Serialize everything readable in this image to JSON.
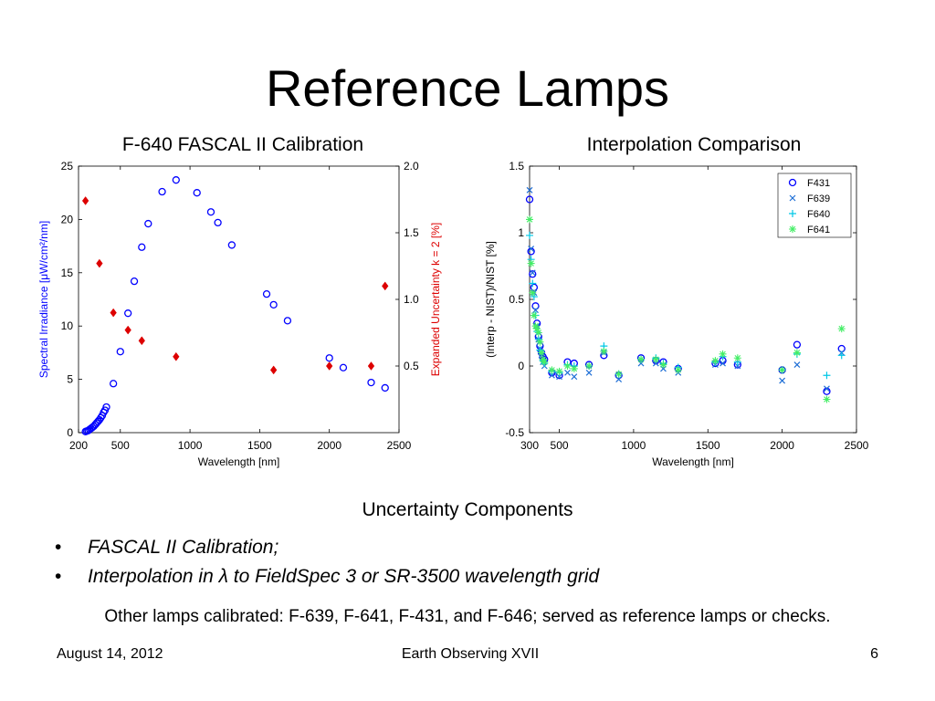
{
  "slide": {
    "title": "Reference Lamps",
    "subheading": "Uncertainty Components",
    "bullets": [
      "FASCAL II Calibration;",
      "Interpolation in λ to FieldSpec 3 or SR-3500 wavelength grid"
    ],
    "note": "Other lamps calibrated: F-639, F-641, F-431, and F-646; served as reference lamps or checks.",
    "footer": {
      "date": "August 14, 2012",
      "conference": "Earth Observing XVII",
      "page": "6"
    }
  },
  "chart_data": [
    {
      "type": "scatter",
      "title": "F-640 FASCAL II Calibration",
      "xlabel": "Wavelength [nm]",
      "xlim": [
        200,
        2500
      ],
      "xticks": [
        200,
        500,
        1000,
        1500,
        2000,
        2500
      ],
      "ylabel": "Spectral Irradiance [μW/cm²/nm]",
      "ylim": [
        0,
        25
      ],
      "yticks": [
        0,
        5,
        10,
        15,
        20,
        25
      ],
      "y2label": "Expanded Uncertainty k = 2 [%]",
      "y2lim": [
        0,
        2.0
      ],
      "y2ticks": [
        "0.5",
        "1.0",
        "1.5",
        "2.0"
      ],
      "colors": {
        "irradiance": "#0000ff",
        "uncertainty": "#dd0000"
      },
      "series": [
        {
          "axis": "left",
          "marker": "circle",
          "x": [
            250,
            260,
            270,
            280,
            290,
            300,
            310,
            320,
            330,
            340,
            350,
            360,
            370,
            380,
            390,
            400,
            450,
            500,
            555,
            600,
            654,
            700,
            800,
            900,
            1050,
            1150,
            1200,
            1300,
            1550,
            1600,
            1700,
            2000,
            2100,
            2300,
            2400
          ],
          "y": [
            0.1,
            0.15,
            0.2,
            0.3,
            0.4,
            0.5,
            0.6,
            0.75,
            0.9,
            1.05,
            1.2,
            1.4,
            1.6,
            1.9,
            2.1,
            2.4,
            4.6,
            7.6,
            11.2,
            14.2,
            17.4,
            19.6,
            22.6,
            23.7,
            22.5,
            20.7,
            19.7,
            17.6,
            13.0,
            12.0,
            10.5,
            7.0,
            6.1,
            4.7,
            4.2
          ]
        },
        {
          "axis": "right",
          "marker": "diamond",
          "x": [
            250,
            350,
            450,
            555,
            654,
            900,
            1600,
            2000,
            2300,
            2400
          ],
          "y": [
            1.74,
            1.27,
            0.9,
            0.77,
            0.69,
            0.57,
            0.47,
            0.5,
            0.5,
            1.1
          ]
        }
      ]
    },
    {
      "type": "scatter",
      "title": "Interpolation Comparison",
      "xlabel": "Wavelength [nm]",
      "xlim": [
        300,
        2500
      ],
      "xticks": [
        300,
        500,
        1000,
        1500,
        2000,
        2500
      ],
      "ylabel": "(Interp - NIST)/NIST [%]",
      "ylim": [
        -0.5,
        1.5
      ],
      "yticks": [
        "-0.5",
        "0",
        "0.5",
        "1",
        "1.5"
      ],
      "legend": "top-right",
      "series": [
        {
          "name": "F431",
          "marker": "circle",
          "color": "#0000ff",
          "x": [
            300,
            310,
            320,
            330,
            340,
            350,
            360,
            370,
            380,
            390,
            400,
            450,
            500,
            555,
            600,
            700,
            800,
            900,
            1050,
            1150,
            1200,
            1300,
            1550,
            1600,
            1700,
            2000,
            2100,
            2300,
            2400
          ],
          "y": [
            1.25,
            0.86,
            0.69,
            0.59,
            0.45,
            0.32,
            0.22,
            0.15,
            0.1,
            0.07,
            0.05,
            -0.05,
            -0.07,
            0.03,
            0.02,
            0.01,
            0.08,
            -0.07,
            0.06,
            0.04,
            0.03,
            -0.02,
            0.02,
            0.04,
            0.01,
            -0.03,
            0.16,
            -0.19,
            0.13
          ]
        },
        {
          "name": "F639",
          "marker": "x",
          "color": "#1f6fd6",
          "x": [
            300,
            310,
            320,
            330,
            340,
            350,
            360,
            370,
            380,
            390,
            400,
            450,
            500,
            555,
            600,
            700,
            800,
            900,
            1050,
            1150,
            1200,
            1300,
            1550,
            1600,
            1700,
            2000,
            2100,
            2300,
            2400
          ],
          "y": [
            1.32,
            0.88,
            0.7,
            0.55,
            0.42,
            0.3,
            0.2,
            0.13,
            0.08,
            0.03,
            0.0,
            -0.07,
            -0.08,
            -0.05,
            -0.08,
            -0.05,
            0.1,
            -0.1,
            0.02,
            0.02,
            -0.02,
            -0.05,
            0.01,
            0.02,
            0.0,
            -0.11,
            0.01,
            -0.17,
            0.1
          ]
        },
        {
          "name": "F640",
          "marker": "plus",
          "color": "#00c8e6",
          "x": [
            300,
            310,
            320,
            330,
            340,
            350,
            360,
            370,
            380,
            390,
            400,
            450,
            500,
            555,
            600,
            700,
            800,
            900,
            1050,
            1150,
            1200,
            1300,
            1550,
            1600,
            1700,
            2000,
            2100,
            2300,
            2400
          ],
          "y": [
            0.98,
            0.8,
            0.62,
            0.52,
            0.38,
            0.26,
            0.2,
            0.12,
            0.1,
            0.04,
            0.02,
            -0.04,
            -0.05,
            0.01,
            0.0,
            0.0,
            0.15,
            -0.06,
            0.05,
            0.06,
            0.02,
            -0.01,
            0.03,
            0.07,
            0.03,
            -0.03,
            0.09,
            -0.07,
            0.08
          ]
        },
        {
          "name": "F641",
          "marker": "asterisk",
          "color": "#44ee66",
          "x": [
            300,
            310,
            320,
            330,
            340,
            350,
            360,
            370,
            380,
            390,
            400,
            450,
            500,
            555,
            600,
            700,
            800,
            900,
            1050,
            1150,
            1200,
            1300,
            1550,
            1600,
            1700,
            2000,
            2100,
            2300,
            2400
          ],
          "y": [
            1.1,
            0.77,
            0.55,
            0.38,
            0.3,
            0.28,
            0.25,
            0.18,
            0.1,
            0.05,
            0.03,
            -0.03,
            -0.04,
            0.0,
            -0.02,
            0.0,
            0.11,
            -0.06,
            0.05,
            0.05,
            0.01,
            -0.03,
            0.04,
            0.09,
            0.06,
            -0.03,
            0.1,
            -0.25,
            0.28
          ]
        }
      ]
    }
  ]
}
